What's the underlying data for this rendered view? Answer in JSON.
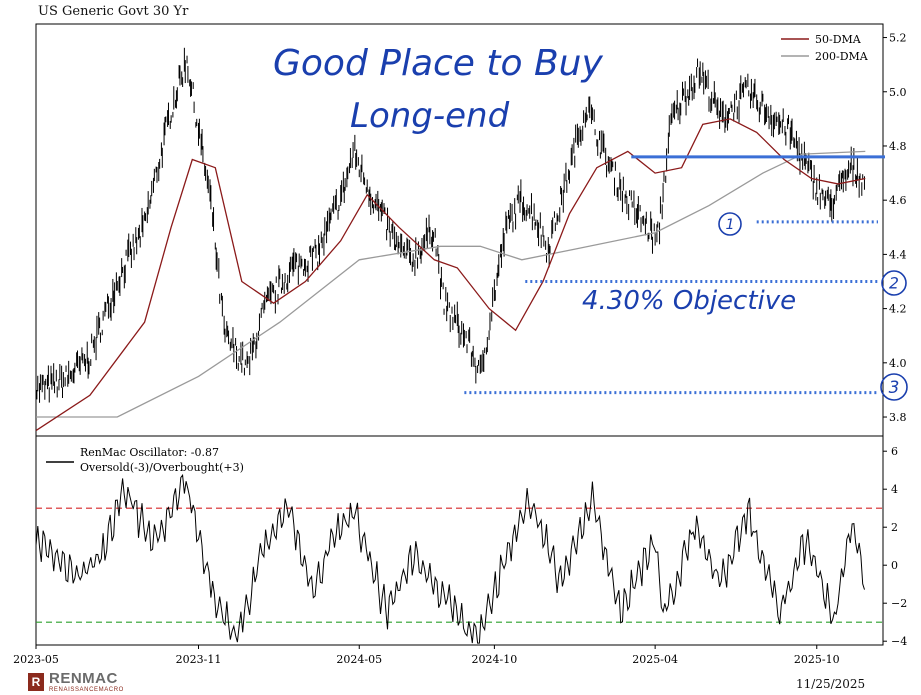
{
  "chart_title": "US Generic Govt 30 Yr",
  "footer": {
    "brand": "RENMAC",
    "brand_sub": "RENAISSANCEMACRO",
    "date": "11/25/2025"
  },
  "colors": {
    "price": "#000000",
    "dma50": "#8b1a1a",
    "dma200": "#9a9a9a",
    "annotation": "#3b6fd6",
    "overbought": "#d62728",
    "oversold": "#2ca02c"
  },
  "chart_data": [
    {
      "type": "line",
      "panel": "price",
      "x_ticks": [
        "2023-05",
        "2023-11",
        "2024-05",
        "2024-10",
        "2025-04",
        "2025-10"
      ],
      "y_ticks": [
        3.8,
        4.0,
        4.2,
        4.4,
        4.6,
        4.8,
        5.0,
        5.2
      ],
      "ylim": [
        3.73,
        5.25
      ],
      "legend": [
        "50-DMA",
        "200-DMA"
      ],
      "legend_position": "top-right",
      "series": [
        {
          "name": "US Generic Govt 30 Yr",
          "style": "ohlc-bars",
          "x": [
            "2023-05-01",
            "2023-06-01",
            "2023-07-01",
            "2023-08-01",
            "2023-09-01",
            "2023-10-01",
            "2023-10-19",
            "2023-11-15",
            "2023-12-01",
            "2023-12-27",
            "2024-01-15",
            "2024-02-15",
            "2024-03-15",
            "2024-04-15",
            "2024-04-25",
            "2024-05-15",
            "2024-06-15",
            "2024-07-01",
            "2024-07-25",
            "2024-08-05",
            "2024-09-01",
            "2024-09-16",
            "2024-10-01",
            "2024-10-15",
            "2024-11-01",
            "2024-11-15",
            "2024-12-01",
            "2025-01-14",
            "2025-02-05",
            "2025-03-01",
            "2025-04-04",
            "2025-04-20",
            "2025-05-22",
            "2025-06-15",
            "2025-07-15",
            "2025-08-15",
            "2025-09-01",
            "2025-10-01",
            "2025-10-16",
            "2025-11-10",
            "2025-11-25"
          ],
          "values": [
            3.9,
            3.93,
            4.02,
            4.3,
            4.5,
            4.93,
            5.12,
            4.6,
            4.1,
            3.98,
            4.2,
            4.35,
            4.4,
            4.65,
            4.78,
            4.62,
            4.42,
            4.38,
            4.5,
            4.22,
            4.08,
            3.95,
            4.25,
            4.5,
            4.6,
            4.55,
            4.42,
            4.95,
            4.75,
            4.6,
            4.45,
            4.9,
            5.08,
            4.9,
            5.0,
            4.9,
            4.85,
            4.65,
            4.58,
            4.72,
            4.67
          ]
        },
        {
          "name": "50-DMA",
          "x": [
            "2023-05-01",
            "2023-07-01",
            "2023-09-01",
            "2023-10-01",
            "2023-10-25",
            "2023-11-20",
            "2023-12-20",
            "2024-01-25",
            "2024-03-01",
            "2024-04-10",
            "2024-05-10",
            "2024-06-15",
            "2024-07-25",
            "2024-08-20",
            "2024-09-25",
            "2024-10-25",
            "2024-11-25",
            "2024-12-25",
            "2025-01-25",
            "2025-03-01",
            "2025-04-01",
            "2025-05-01",
            "2025-05-25",
            "2025-06-25",
            "2025-07-25",
            "2025-08-25",
            "2025-09-25",
            "2025-10-25",
            "2025-11-25"
          ],
          "values": [
            3.75,
            3.88,
            4.15,
            4.5,
            4.75,
            4.72,
            4.3,
            4.22,
            4.3,
            4.45,
            4.62,
            4.5,
            4.38,
            4.35,
            4.2,
            4.12,
            4.3,
            4.55,
            4.72,
            4.78,
            4.7,
            4.72,
            4.88,
            4.9,
            4.85,
            4.75,
            4.68,
            4.66,
            4.68
          ]
        },
        {
          "name": "200-DMA",
          "x": [
            "2023-05-01",
            "2023-08-01",
            "2023-11-01",
            "2024-02-01",
            "2024-05-01",
            "2024-08-01",
            "2024-09-15",
            "2024-11-01",
            "2025-01-01",
            "2025-04-01",
            "2025-06-01",
            "2025-08-01",
            "2025-09-15",
            "2025-11-25"
          ],
          "values": [
            3.8,
            3.8,
            3.95,
            4.15,
            4.38,
            4.43,
            4.43,
            4.38,
            4.42,
            4.48,
            4.58,
            4.7,
            4.77,
            4.78
          ]
        }
      ]
    },
    {
      "type": "line",
      "panel": "oscillator",
      "y_ticks": [
        -4,
        -2,
        0,
        2,
        4,
        6
      ],
      "ylim": [
        -4.2,
        6.8
      ],
      "legend": [
        "RenMac Oscillator: -0.87",
        "Oversold(-3)/Overbought(+3)"
      ],
      "legend_position": "top-left",
      "reference_lines": [
        3,
        -3
      ],
      "series": [
        {
          "name": "RenMac Oscillator",
          "x": [
            "2023-05-01",
            "2023-06-15",
            "2023-07-15",
            "2023-08-10",
            "2023-09-10",
            "2023-10-01",
            "2023-10-15",
            "2023-11-20",
            "2023-12-15",
            "2024-01-10",
            "2024-02-10",
            "2024-03-10",
            "2024-04-01",
            "2024-04-25",
            "2024-06-01",
            "2024-07-01",
            "2024-08-10",
            "2024-09-10",
            "2024-10-15",
            "2024-11-10",
            "2024-12-15",
            "2025-01-20",
            "2025-02-20",
            "2025-04-01",
            "2025-04-10",
            "2025-05-15",
            "2025-06-15",
            "2025-07-15",
            "2025-08-20",
            "2025-09-20",
            "2025-10-20",
            "2025-11-10",
            "2025-11-25"
          ],
          "values": [
            1.5,
            -0.5,
            0.5,
            4.0,
            1.0,
            3.0,
            4.6,
            -2.0,
            -3.8,
            0.5,
            3.2,
            -1.5,
            1.5,
            2.8,
            -2.5,
            0.5,
            -2.0,
            -4.0,
            0.5,
            3.6,
            -1.0,
            3.5,
            -2.5,
            1.5,
            -2.8,
            2.0,
            -1.0,
            2.8,
            -2.5,
            1.5,
            -3.0,
            2.0,
            -0.87
          ]
        }
      ]
    }
  ],
  "annotations": {
    "headline_1": "Good Place to Buy",
    "headline_2": "Long-end",
    "objective_label": "4.30% Objective",
    "marker_1": "1",
    "marker_2": "2",
    "marker_3": "3",
    "levels": {
      "resistance": 4.76,
      "support_1": 4.52,
      "objective": 4.3,
      "support_3": 3.89
    }
  }
}
